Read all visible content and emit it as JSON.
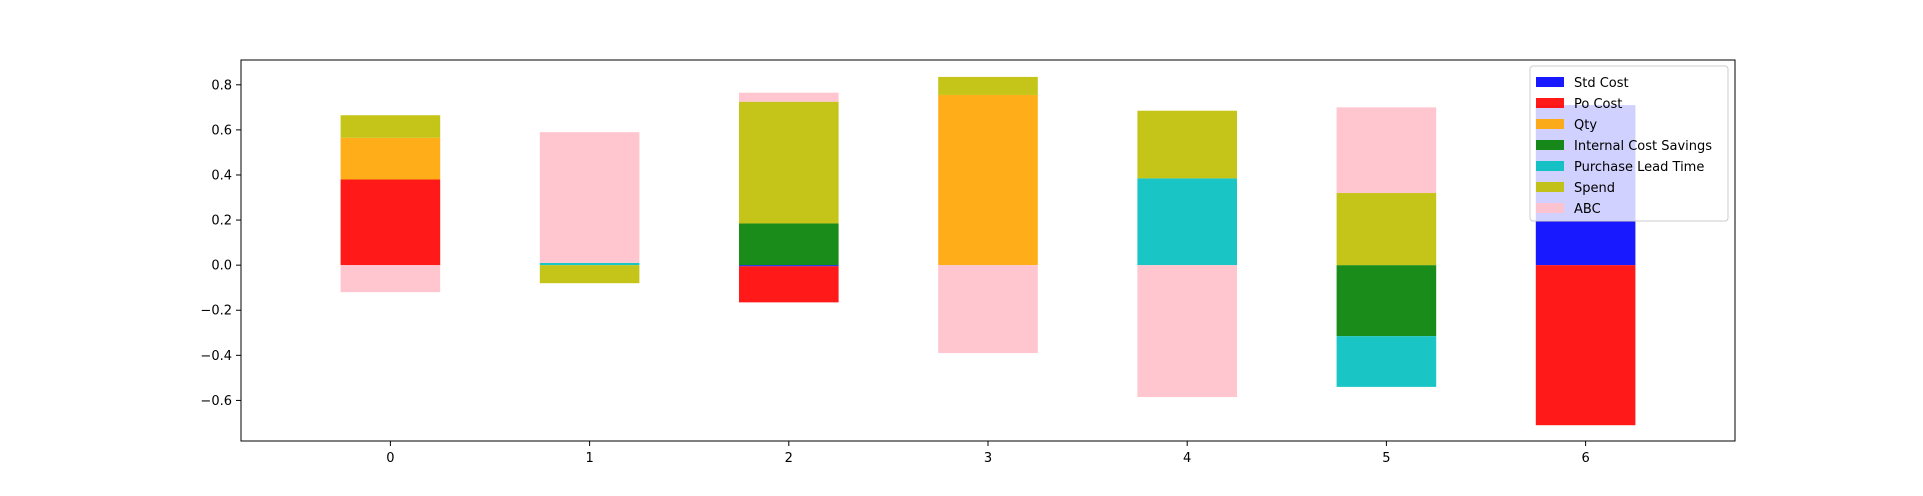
{
  "chart_data": {
    "type": "bar",
    "stacked": true,
    "categories": [
      "0",
      "1",
      "2",
      "3",
      "4",
      "5",
      "6"
    ],
    "ylim": [
      -0.78,
      0.91
    ],
    "yticks": [
      "0.8",
      "0.6",
      "0.4",
      "0.2",
      "0.0",
      "−0.2",
      "−0.4",
      "−0.6"
    ],
    "ytick_values": [
      0.8,
      0.6,
      0.4,
      0.2,
      0.0,
      -0.2,
      -0.4,
      -0.6
    ],
    "legend_position": "top-right",
    "grid": false,
    "bar_opacity": 0.9,
    "series": [
      {
        "name": "Std Cost",
        "color": "#0000ff",
        "values": [
          0.0,
          0.0,
          -0.005,
          0.0,
          0.0,
          0.0,
          0.71
        ]
      },
      {
        "name": "Po Cost",
        "color": "#ff0000",
        "values": [
          0.38,
          0.0,
          -0.16,
          0.0,
          0.0,
          0.0,
          -0.71
        ]
      },
      {
        "name": "Qty",
        "color": "#ffa500",
        "values": [
          0.185,
          0.0,
          0.0,
          0.755,
          0.0,
          0.0,
          0.0
        ]
      },
      {
        "name": "Internal Cost Savings",
        "color": "#008000",
        "values": [
          0.0,
          0.0,
          0.185,
          0.0,
          0.0,
          -0.315,
          0.0
        ]
      },
      {
        "name": "Purchase Lead Time",
        "color": "#00bfbf",
        "values": [
          0.0,
          0.01,
          0.0,
          0.0,
          0.385,
          -0.225,
          0.0
        ]
      },
      {
        "name": "Spend",
        "color": "#bfbf00",
        "values": [
          0.1,
          -0.08,
          0.54,
          0.08,
          0.3,
          0.32,
          0.0
        ]
      },
      {
        "name": "ABC",
        "color": "#ffc0cb",
        "values": [
          -0.12,
          0.58,
          0.04,
          -0.39,
          -0.585,
          0.38,
          0.0
        ]
      }
    ],
    "legend_entries": [
      "Std Cost",
      "Po Cost",
      "Qty",
      "Internal Cost Savings",
      "Purchase Lead Time",
      "Spend",
      "ABC"
    ]
  }
}
